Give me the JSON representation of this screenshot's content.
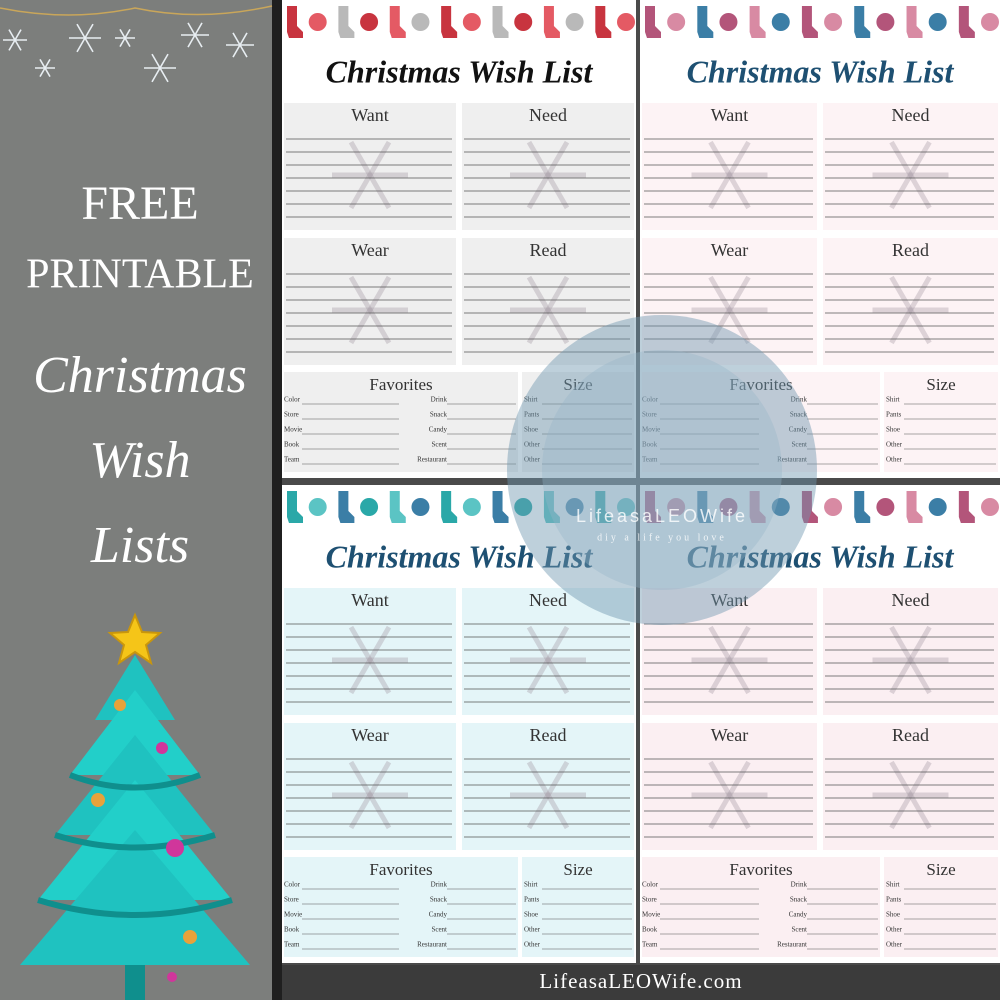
{
  "left": {
    "lines": [
      "FREE",
      "PRINTABLE"
    ],
    "script": [
      "Christmas",
      "Wish",
      "Lists"
    ]
  },
  "cards": [
    {
      "title": "Christmas Wish List",
      "sections": [
        "Want",
        "Need",
        "Wear",
        "Read"
      ],
      "favorites": {
        "title": "Favorites",
        "left": [
          "Color",
          "Store",
          "Movie",
          "Book",
          "Team"
        ],
        "right": [
          "Drink",
          "Snack",
          "Candy",
          "Scent",
          "Restaurant"
        ]
      },
      "size": {
        "title": "Size",
        "items": [
          "Shirt",
          "Pants",
          "Shoe",
          "Other",
          "Other"
        ]
      }
    },
    {
      "title": "Christmas Wish List",
      "sections": [
        "Want",
        "Need",
        "Wear",
        "Read"
      ],
      "favorites": {
        "title": "Favorites",
        "left": [
          "Color",
          "Store",
          "Movie",
          "Book",
          "Team"
        ],
        "right": [
          "Drink",
          "Snack",
          "Candy",
          "Scent",
          "Restaurant"
        ]
      },
      "size": {
        "title": "Size",
        "items": [
          "Shirt",
          "Pants",
          "Shoe",
          "Other",
          "Other"
        ]
      }
    },
    {
      "title": "Christmas Wish List",
      "sections": [
        "Want",
        "Need",
        "Wear",
        "Read"
      ],
      "favorites": {
        "title": "Favorites",
        "left": [
          "Color",
          "Store",
          "Movie",
          "Book",
          "Team"
        ],
        "right": [
          "Drink",
          "Snack",
          "Candy",
          "Scent",
          "Restaurant"
        ]
      },
      "size": {
        "title": "Size",
        "items": [
          "Shirt",
          "Pants",
          "Shoe",
          "Other",
          "Other"
        ]
      }
    },
    {
      "title": "Christmas Wish List",
      "sections": [
        "Want",
        "Need",
        "Wear",
        "Read"
      ],
      "favorites": {
        "title": "Favorites",
        "left": [
          "Color",
          "Store",
          "Movie",
          "Book",
          "Team"
        ],
        "right": [
          "Drink",
          "Snack",
          "Candy",
          "Scent",
          "Restaurant"
        ]
      },
      "size": {
        "title": "Size",
        "items": [
          "Shirt",
          "Pants",
          "Shoe",
          "Other",
          "Other"
        ]
      }
    }
  ],
  "watermark": {
    "name": "LifeasaLEOWife",
    "tagline": "diy a life you love"
  },
  "footer": "LifeasaLEOWife.com"
}
